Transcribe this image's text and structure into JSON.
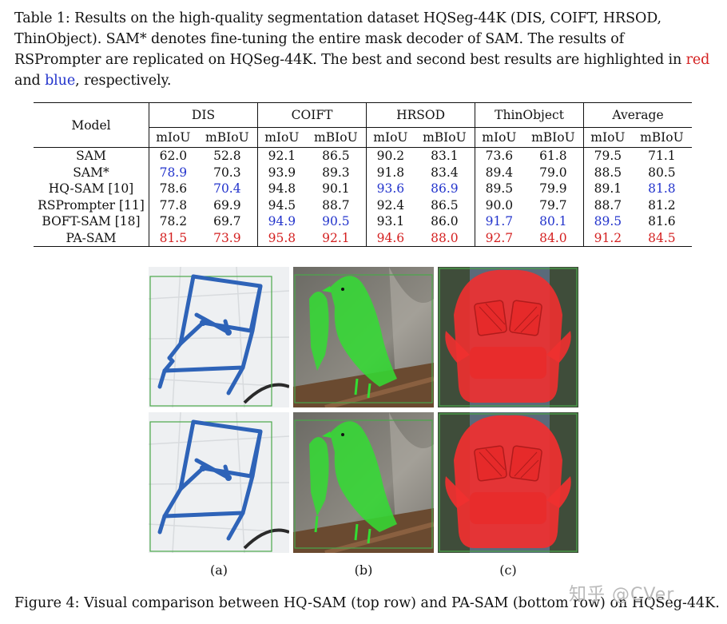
{
  "table_caption": {
    "text_before": "Table 1: Results on the high-quality segmentation dataset HQSeg-44K (DIS, COIFT, HRSOD, ThinObject). SAM* denotes fine-tuning the entire mask decoder of SAM. The results of RSPrompter are replicated on HQSeg-44K. The best and second best results are highlighted in ",
    "red_word": "red",
    "and_word": " and ",
    "blue_word": "blue",
    "text_after": ", respectively."
  },
  "table": {
    "model_header": "Model",
    "groups": [
      "DIS",
      "COIFT",
      "HRSOD",
      "ThinObject",
      "Average"
    ],
    "metrics": [
      "mIoU",
      "mBIoU",
      "mIoU",
      "mBIoU",
      "mIoU",
      "mBIoU",
      "mIoU",
      "mBIoU",
      "mIoU",
      "mBIoU"
    ],
    "rows": [
      {
        "model": "SAM",
        "values": [
          "62.0",
          "52.8",
          "92.1",
          "86.5",
          "90.2",
          "83.1",
          "73.6",
          "61.8",
          "79.5",
          "71.1"
        ]
      },
      {
        "model": "SAM*",
        "values": [
          "78.9",
          "70.3",
          "93.9",
          "89.3",
          "91.8",
          "83.4",
          "89.4",
          "79.0",
          "88.5",
          "80.5"
        ]
      },
      {
        "model": "HQ-SAM [10]",
        "values": [
          "78.6",
          "70.4",
          "94.8",
          "90.1",
          "93.6",
          "86.9",
          "89.5",
          "79.9",
          "89.1",
          "81.8"
        ]
      },
      {
        "model": "RSPrompter [11]",
        "values": [
          "77.8",
          "69.9",
          "94.5",
          "88.7",
          "92.4",
          "86.5",
          "90.0",
          "79.7",
          "88.7",
          "81.2"
        ]
      },
      {
        "model": "BOFT-SAM [18]",
        "values": [
          "78.2",
          "69.7",
          "94.9",
          "90.5",
          "93.1",
          "86.0",
          "91.7",
          "80.1",
          "89.5",
          "81.6"
        ]
      },
      {
        "model": "PA-SAM",
        "values": [
          "81.5",
          "73.9",
          "95.8",
          "92.1",
          "94.6",
          "88.0",
          "92.7",
          "84.0",
          "91.2",
          "84.5"
        ]
      }
    ],
    "highlights": {
      "red": [
        [
          5,
          0
        ],
        [
          5,
          1
        ],
        [
          5,
          2
        ],
        [
          5,
          3
        ],
        [
          5,
          4
        ],
        [
          5,
          5
        ],
        [
          5,
          6
        ],
        [
          5,
          7
        ],
        [
          5,
          8
        ],
        [
          5,
          9
        ]
      ],
      "blue": [
        [
          1,
          0
        ],
        [
          2,
          1
        ],
        [
          2,
          4
        ],
        [
          2,
          5
        ],
        [
          2,
          9
        ],
        [
          4,
          2
        ],
        [
          4,
          3
        ],
        [
          4,
          6
        ],
        [
          4,
          7
        ],
        [
          4,
          8
        ]
      ]
    },
    "colors": {
      "red": "#d42020",
      "blue": "#2233cc"
    }
  },
  "figure": {
    "sublabels": [
      "(a)",
      "(b)",
      "(c)"
    ],
    "caption": "Figure 4: Visual comparison between HQ-SAM (top row) and PA-SAM (bottom row) on HQSeg-44K.",
    "watermark": "知乎 @CVer"
  }
}
